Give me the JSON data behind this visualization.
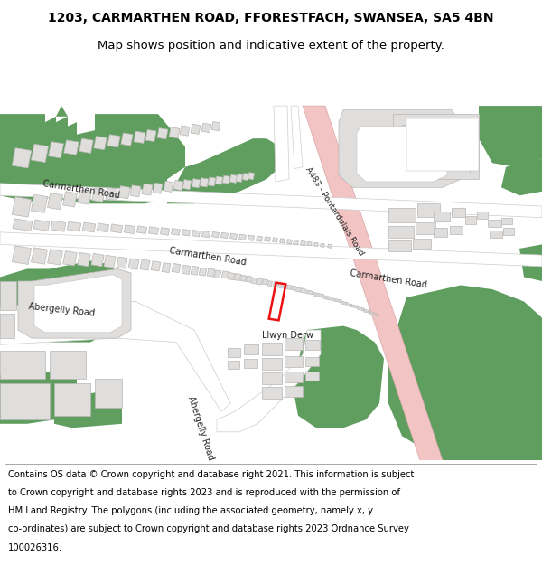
{
  "title_line1": "1203, CARMARTHEN ROAD, FFORESTFACH, SWANSEA, SA5 4BN",
  "title_line2": "Map shows position and indicative extent of the property.",
  "bg_color": "#ffffff",
  "map_bg": "#ffffff",
  "road_color": "#ffffff",
  "green_color": "#5f9e5f",
  "building_color": "#e0dedd",
  "building_border": "#b8b6b4",
  "highlight_road_color": "#f2c4c4",
  "plot_color": "#ee1111",
  "title_fontsize": 10,
  "footer_fontsize": 7.2,
  "footer_lines": [
    "Contains OS data © Crown copyright and database right 2021. This information is subject",
    "to Crown copyright and database rights 2023 and is reproduced with the permission of",
    "HM Land Registry. The polygons (including the associated geometry, namely x, y",
    "co-ordinates) are subject to Crown copyright and database rights 2023 Ordnance Survey",
    "100026316."
  ]
}
